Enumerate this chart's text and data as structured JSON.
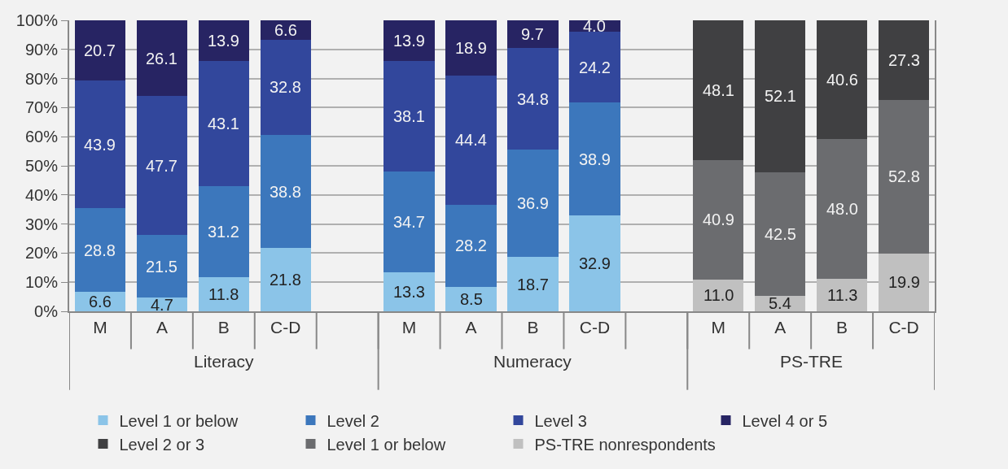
{
  "chart_data": {
    "type": "bar",
    "stacked": true,
    "grid": "y",
    "legend": "bottom",
    "categories": [
      "M",
      "A",
      "B",
      "C-D",
      null,
      "M",
      "A",
      "B",
      "C-D",
      null,
      "M",
      "A",
      "B",
      "C-D"
    ],
    "ylim": [
      0,
      100
    ],
    "yticks": [
      {
        "value": 0,
        "label": "0%"
      },
      {
        "value": 10,
        "label": "10%"
      },
      {
        "value": 20,
        "label": "20%"
      },
      {
        "value": 30,
        "label": "30%"
      },
      {
        "value": 40,
        "label": "40%"
      },
      {
        "value": 50,
        "label": "50%"
      },
      {
        "value": 60,
        "label": "60%"
      },
      {
        "value": 70,
        "label": "70%"
      },
      {
        "value": 80,
        "label": "80%"
      },
      {
        "value": 90,
        "label": "90%"
      },
      {
        "value": 100,
        "label": "100%"
      }
    ],
    "annotations": [
      "Literacy",
      "Numeracy",
      "PS-TRE"
    ],
    "series": [
      {
        "name": "Level 1 or below",
        "color": "#8bc4e8",
        "values": [
          6.6,
          4.7,
          11.8,
          21.8,
          null,
          13.3,
          8.5,
          18.7,
          32.9,
          null,
          null,
          null,
          null,
          null
        ],
        "value_labels": [
          "6.6",
          "4.7",
          "11.8",
          "21.8",
          null,
          "13.3",
          "8.5",
          "18.7",
          "32.9",
          null,
          null,
          null,
          null,
          null
        ]
      },
      {
        "name": "Level 2",
        "color": "#3c77bc",
        "values": [
          28.8,
          21.5,
          31.2,
          38.8,
          null,
          34.7,
          28.2,
          36.9,
          38.9,
          null,
          null,
          null,
          null,
          null
        ],
        "value_labels": [
          "28.8",
          "21.5",
          "31.2",
          "38.8",
          null,
          "34.7",
          "28.2",
          "36.9",
          "38.9",
          null,
          null,
          null,
          null,
          null
        ]
      },
      {
        "name": "Level 3",
        "color": "#32479c",
        "values": [
          43.9,
          47.7,
          43.1,
          32.8,
          null,
          38.1,
          44.4,
          34.8,
          24.2,
          null,
          null,
          null,
          null,
          null
        ],
        "value_labels": [
          "43.9",
          "47.7",
          "43.1",
          "32.8",
          null,
          "38.1",
          "44.4",
          "34.8",
          "24.2",
          null,
          null,
          null,
          null,
          null
        ]
      },
      {
        "name": "Level 4 or 5",
        "color": "#272463",
        "values": [
          20.7,
          26.1,
          13.9,
          6.6,
          null,
          13.9,
          18.9,
          9.7,
          4.0,
          null,
          null,
          null,
          null,
          null
        ],
        "value_labels": [
          "20.7",
          "26.1",
          "13.9",
          "6.6",
          null,
          "13.9",
          "18.9",
          "9.7",
          "4.0",
          null,
          null,
          null,
          null,
          null
        ]
      },
      {
        "name": "PS-TRE nonrespondents",
        "color": "#c0c0c0",
        "values": [
          null,
          null,
          null,
          null,
          null,
          null,
          null,
          null,
          null,
          null,
          11.0,
          5.4,
          11.3,
          19.9
        ],
        "value_labels": [
          null,
          null,
          null,
          null,
          null,
          null,
          null,
          null,
          null,
          null,
          "11.0",
          "5.4",
          "11.3",
          "19.9"
        ]
      },
      {
        "name": "Level 1 or below",
        "color": "#6b6c6f",
        "values": [
          null,
          null,
          null,
          null,
          null,
          null,
          null,
          null,
          null,
          null,
          40.9,
          42.5,
          48.0,
          52.8
        ],
        "value_labels": [
          null,
          null,
          null,
          null,
          null,
          null,
          null,
          null,
          null,
          null,
          "40.9",
          "42.5",
          "48.0",
          "52.8"
        ]
      },
      {
        "name": "Level 2 or 3",
        "color": "#404042",
        "values": [
          null,
          null,
          null,
          null,
          null,
          null,
          null,
          null,
          null,
          null,
          48.1,
          52.1,
          40.6,
          27.3
        ],
        "value_labels": [
          null,
          null,
          null,
          null,
          null,
          null,
          null,
          null,
          null,
          null,
          "48.1",
          "52.1",
          "40.6",
          "27.3"
        ]
      }
    ]
  }
}
